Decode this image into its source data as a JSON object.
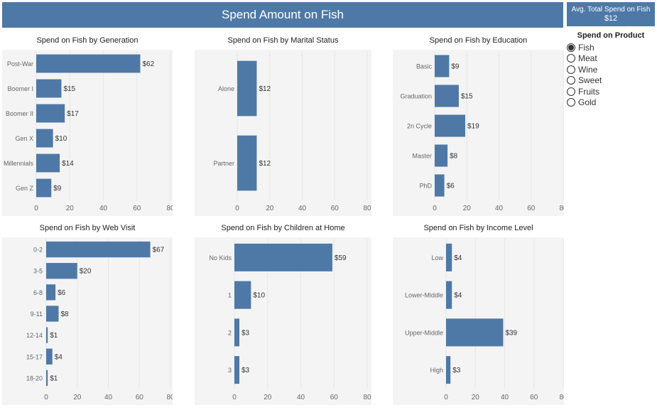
{
  "header": {
    "title": "Spend Amount on Fish"
  },
  "kpi": {
    "label": "Avg. Total Spend on Fish",
    "value": "$12"
  },
  "legend": {
    "title": "Spend on Product",
    "options": [
      "Fish",
      "Meat",
      "Wine",
      "Sweet",
      "Fruits",
      "Gold"
    ],
    "selected": "Fish"
  },
  "colors": {
    "bar": "#4e79a7",
    "header": "#4e79a7",
    "panel_bg": "#f4f4f4"
  },
  "chart_data": [
    {
      "type": "bar",
      "title": "Spend on Fish by Generation",
      "categories": [
        "Post-War",
        "Boomer I",
        "Boomer II",
        "Gen X",
        "Millennials",
        "Gen Z"
      ],
      "values": [
        62,
        15,
        17,
        10,
        14,
        9
      ],
      "labels": [
        "$62",
        "$15",
        "$17",
        "$10",
        "$14",
        "$9"
      ],
      "xlim": [
        0,
        80
      ],
      "xticks": [
        "0",
        "20",
        "40",
        "60",
        "80"
      ]
    },
    {
      "type": "bar",
      "title": "Spend on Fish by Marital Status",
      "categories": [
        "Alone",
        "Partner"
      ],
      "values": [
        12,
        12
      ],
      "labels": [
        "$12",
        "$12"
      ],
      "xlim": [
        0,
        80
      ],
      "xticks": [
        "0",
        "20",
        "40",
        "60",
        "80"
      ]
    },
    {
      "type": "bar",
      "title": "Spend on Fish by Education",
      "categories": [
        "Basic",
        "Graduation",
        "2n Cycle",
        "Master",
        "PhD"
      ],
      "values": [
        9,
        15,
        19,
        8,
        6
      ],
      "labels": [
        "$9",
        "$15",
        "$19",
        "$8",
        "$6"
      ],
      "xlim": [
        0,
        80
      ],
      "xticks": [
        "0",
        "20",
        "40",
        "60",
        "80"
      ]
    },
    {
      "type": "bar",
      "title": "Spend on Fish by Web Visit",
      "categories": [
        "0-2",
        "3-5",
        "6-8",
        "9-11",
        "12-14",
        "15-17",
        "18-20"
      ],
      "values": [
        67,
        20,
        6,
        8,
        1,
        4,
        1
      ],
      "labels": [
        "$67",
        "$20",
        "$6",
        "$8",
        "$1",
        "$4",
        "$1"
      ],
      "xlim": [
        0,
        80
      ],
      "xticks": [
        "0",
        "20",
        "40",
        "60",
        "80"
      ]
    },
    {
      "type": "bar",
      "title": "Spend on Fish by Children at Home",
      "categories": [
        "No Kids",
        "1",
        "2",
        "3"
      ],
      "values": [
        59,
        10,
        3,
        3
      ],
      "labels": [
        "$59",
        "$10",
        "$3",
        "$3"
      ],
      "xlim": [
        0,
        80
      ],
      "xticks": [
        "0",
        "20",
        "40",
        "60",
        "80"
      ]
    },
    {
      "type": "bar",
      "title": "Spend on Fish by Income Level",
      "categories": [
        "Low",
        "Lower-Middle",
        "Upper-Middle",
        "High"
      ],
      "values": [
        4,
        4,
        39,
        3
      ],
      "labels": [
        "$4",
        "$4",
        "$39",
        "$3"
      ],
      "xlim": [
        0,
        80
      ],
      "xticks": [
        "0",
        "20",
        "40",
        "60",
        "80"
      ]
    }
  ]
}
